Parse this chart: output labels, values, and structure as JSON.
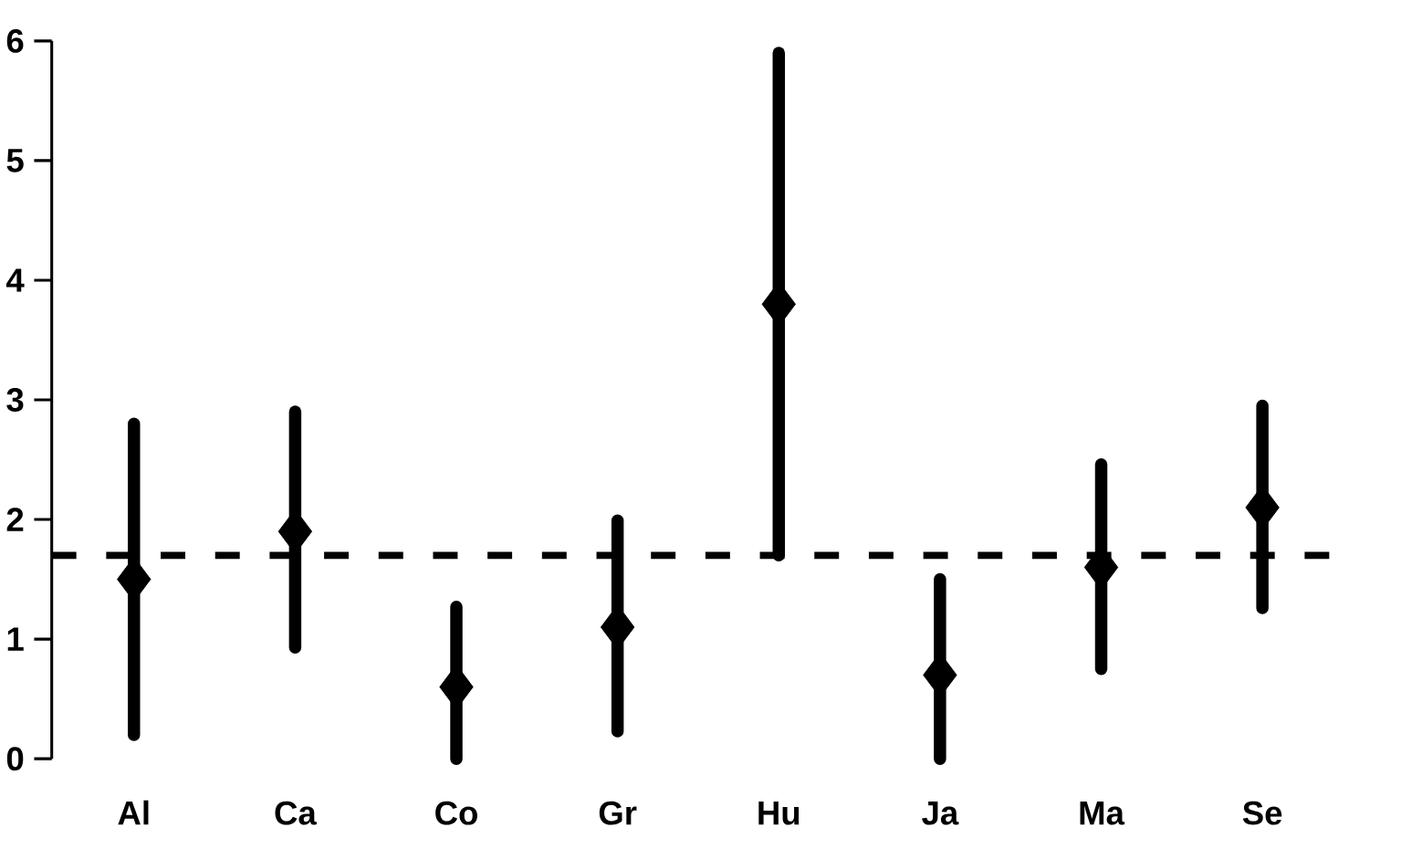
{
  "chart_data": {
    "type": "scatter",
    "categories": [
      "Al",
      "Ca",
      "Co",
      "Gr",
      "Hu",
      "Ja",
      "Ma",
      "Se"
    ],
    "values": [
      1.5,
      1.9,
      0.6,
      1.1,
      3.8,
      0.7,
      1.6,
      2.1
    ],
    "errors": [
      [
        0.2,
        2.8
      ],
      [
        0.93,
        2.9
      ],
      [
        0,
        1.27
      ],
      [
        0.23,
        1.99
      ],
      [
        1.7,
        5.9
      ],
      [
        0,
        1.5
      ],
      [
        0.75,
        2.46
      ],
      [
        1.26,
        2.95
      ]
    ],
    "color": "#000000",
    "marker": "diamond",
    "ylim": [
      0,
      6
    ],
    "yticks": [
      0,
      1,
      2,
      3,
      4,
      5,
      6
    ],
    "ref_lines": [
      {
        "axis": "y",
        "value": 1.7,
        "line_style": "dashed",
        "color": "#000000"
      }
    ],
    "grid": false
  }
}
